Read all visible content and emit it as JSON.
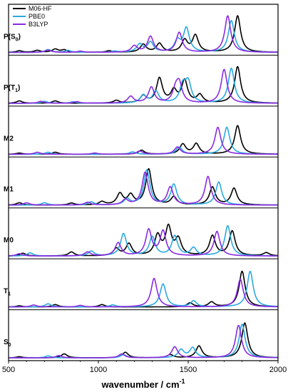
{
  "chart_data": {
    "type": "line",
    "xlabel": "wavenumber / cm",
    "xlabel_superscript": "-1",
    "xlim": [
      500,
      2000
    ],
    "x_ticks": [
      500,
      1000,
      1500,
      2000
    ],
    "y_ticks_shown": false,
    "grid": false,
    "legend_position": "top-left",
    "series_styles": [
      {
        "name": "M06-HF",
        "color": "#000000"
      },
      {
        "name": "PBE0",
        "color": "#29a9e1"
      },
      {
        "name": "B3LYP",
        "color": "#8a2be2"
      }
    ],
    "panels": [
      {
        "label": "P(S",
        "label_sub": "0",
        "label_tail": ")",
        "series": {
          "M06-HF": [
            [
              560,
              0.04
            ],
            [
              660,
              0.05
            ],
            [
              760,
              0.08
            ],
            [
              810,
              0.06
            ],
            [
              1060,
              0.04
            ],
            [
              1250,
              0.2
            ],
            [
              1340,
              0.22
            ],
            [
              1480,
              0.3
            ],
            [
              1540,
              0.42
            ],
            [
              1775,
              0.92
            ]
          ],
          "PBE0": [
            [
              720,
              0.07
            ],
            [
              830,
              0.05
            ],
            [
              1090,
              0.03
            ],
            [
              1230,
              0.2
            ],
            [
              1290,
              0.25
            ],
            [
              1440,
              0.28
            ],
            [
              1490,
              0.6
            ],
            [
              1740,
              0.8
            ]
          ],
          "B3LYP": [
            [
              720,
              0.06
            ],
            [
              900,
              0.03
            ],
            [
              1200,
              0.16
            ],
            [
              1290,
              0.4
            ],
            [
              1450,
              0.5
            ],
            [
              1720,
              0.92
            ]
          ]
        }
      },
      {
        "label": "P(T",
        "label_sub": "1",
        "label_tail": ")",
        "series": {
          "M06-HF": [
            [
              560,
              0.06
            ],
            [
              760,
              0.06
            ],
            [
              1100,
              0.07
            ],
            [
              1250,
              0.18
            ],
            [
              1340,
              0.62
            ],
            [
              1420,
              0.3
            ],
            [
              1480,
              0.56
            ],
            [
              1565,
              0.2
            ],
            [
              1775,
              0.92
            ]
          ],
          "PBE0": [
            [
              700,
              0.05
            ],
            [
              860,
              0.04
            ],
            [
              1250,
              0.2
            ],
            [
              1320,
              0.3
            ],
            [
              1470,
              0.42
            ],
            [
              1500,
              0.5
            ],
            [
              1740,
              0.88
            ]
          ],
          "B3LYP": [
            [
              680,
              0.05
            ],
            [
              880,
              0.04
            ],
            [
              1180,
              0.17
            ],
            [
              1295,
              0.4
            ],
            [
              1430,
              0.3
            ],
            [
              1450,
              0.45
            ],
            [
              1700,
              0.85
            ]
          ]
        }
      },
      {
        "label": "M2",
        "label_sub": "",
        "label_tail": "",
        "series": {
          "M06-HF": [
            [
              560,
              0.03
            ],
            [
              760,
              0.05
            ],
            [
              1240,
              0.1
            ],
            [
              1470,
              0.25
            ],
            [
              1545,
              0.26
            ],
            [
              1775,
              0.72
            ]
          ],
          "PBE0": [
            [
              720,
              0.05
            ],
            [
              1190,
              0.06
            ],
            [
              1450,
              0.18
            ],
            [
              1715,
              0.68
            ]
          ],
          "B3LYP": [
            [
              660,
              0.05
            ],
            [
              980,
              0.03
            ],
            [
              1230,
              0.08
            ],
            [
              1440,
              0.18
            ],
            [
              1665,
              0.68
            ]
          ]
        }
      },
      {
        "label": "M1",
        "label_sub": "",
        "label_tail": "",
        "series": {
          "M06-HF": [
            [
              560,
              0.06
            ],
            [
              850,
              0.05
            ],
            [
              1020,
              0.08
            ],
            [
              1120,
              0.28
            ],
            [
              1180,
              0.24
            ],
            [
              1280,
              0.9
            ],
            [
              1420,
              0.2
            ],
            [
              1635,
              0.45
            ],
            [
              1755,
              0.42
            ]
          ],
          "PBE0": [
            [
              700,
              0.06
            ],
            [
              960,
              0.08
            ],
            [
              1160,
              0.15
            ],
            [
              1270,
              0.88
            ],
            [
              1420,
              0.52
            ],
            [
              1670,
              0.58
            ]
          ],
          "B3LYP": [
            [
              600,
              0.06
            ],
            [
              940,
              0.07
            ],
            [
              1150,
              0.13
            ],
            [
              1260,
              0.82
            ],
            [
              1400,
              0.45
            ],
            [
              1610,
              0.72
            ]
          ]
        }
      },
      {
        "label": "M0",
        "label_sub": "",
        "label_tail": "",
        "series": {
          "M06-HF": [
            [
              580,
              0.07
            ],
            [
              850,
              0.1
            ],
            [
              1100,
              0.18
            ],
            [
              1170,
              0.3
            ],
            [
              1330,
              0.5
            ],
            [
              1390,
              0.7
            ],
            [
              1445,
              0.4
            ],
            [
              1635,
              0.5
            ],
            [
              1745,
              0.62
            ],
            [
              1935,
              0.08
            ]
          ],
          "PBE0": [
            [
              620,
              0.08
            ],
            [
              960,
              0.12
            ],
            [
              1140,
              0.56
            ],
            [
              1300,
              0.48
            ],
            [
              1425,
              0.5
            ],
            [
              1530,
              0.2
            ],
            [
              1720,
              0.76
            ]
          ],
          "B3LYP": [
            [
              560,
              0.06
            ],
            [
              940,
              0.1
            ],
            [
              1110,
              0.33
            ],
            [
              1280,
              0.65
            ],
            [
              1360,
              0.62
            ],
            [
              1660,
              0.62
            ]
          ]
        }
      },
      {
        "label": "T",
        "label_sub": "1",
        "label_tail": "",
        "series": {
          "M06-HF": [
            [
              560,
              0.03
            ],
            [
              760,
              0.06
            ],
            [
              1020,
              0.06
            ],
            [
              1510,
              0.1
            ],
            [
              1630,
              0.12
            ],
            [
              1800,
              0.9
            ]
          ],
          "PBE0": [
            [
              720,
              0.08
            ],
            [
              1080,
              0.05
            ],
            [
              1360,
              0.58
            ],
            [
              1530,
              0.15
            ],
            [
              1845,
              0.9
            ]
          ],
          "B3LYP": [
            [
              640,
              0.05
            ],
            [
              900,
              0.04
            ],
            [
              1310,
              0.72
            ],
            [
              1790,
              0.7
            ]
          ]
        }
      },
      {
        "label": "S",
        "label_sub": "0",
        "label_tail": "",
        "series": {
          "M06-HF": [
            [
              560,
              0.03
            ],
            [
              810,
              0.1
            ],
            [
              1150,
              0.14
            ],
            [
              1400,
              0.08
            ],
            [
              1560,
              0.3
            ],
            [
              1815,
              0.88
            ]
          ],
          "PBE0": [
            [
              720,
              0.05
            ],
            [
              1140,
              0.08
            ],
            [
              1460,
              0.2
            ],
            [
              1525,
              0.25
            ],
            [
              1800,
              0.85
            ]
          ],
          "B3LYP": [
            [
              780,
              0.06
            ],
            [
              1130,
              0.1
            ],
            [
              1425,
              0.28
            ],
            [
              1780,
              0.82
            ]
          ]
        }
      }
    ]
  }
}
